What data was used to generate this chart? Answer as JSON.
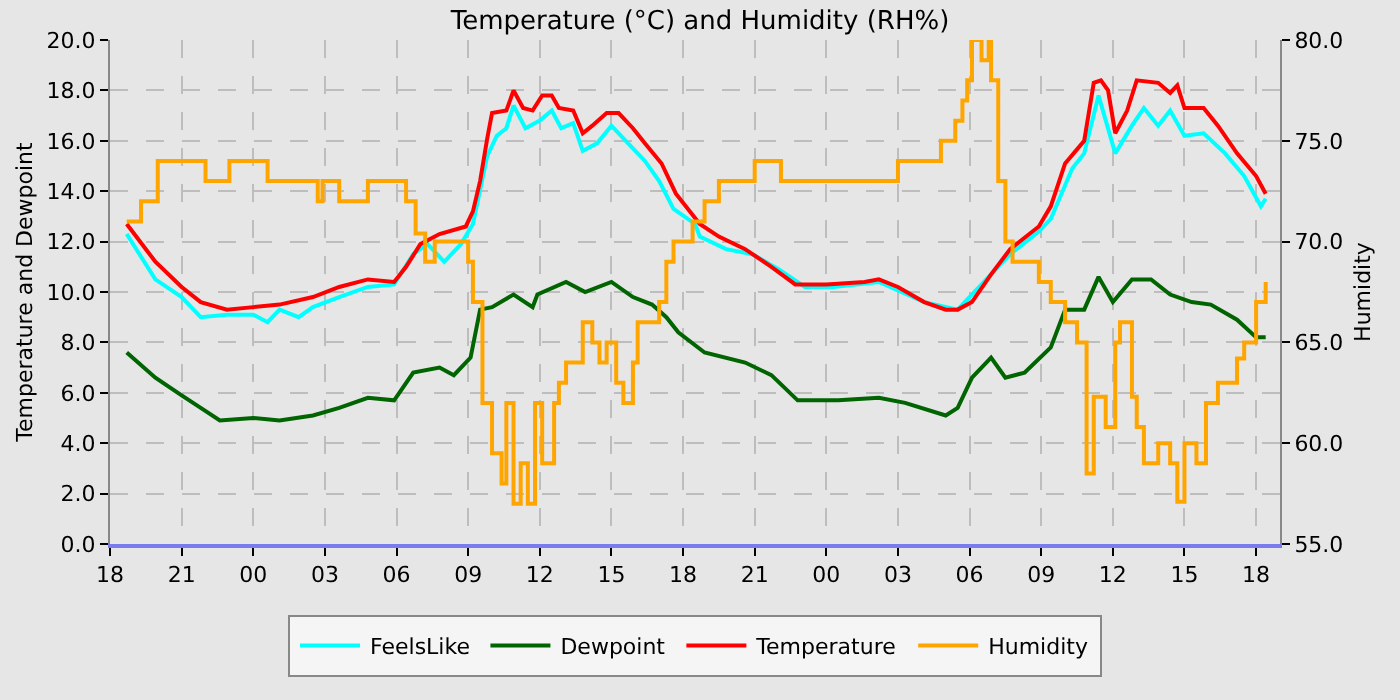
{
  "chart_data": {
    "type": "line",
    "title": "Temperature (°C) and Humidity (RH%)",
    "ylabel": "Temperature and Dewpoint",
    "y2label": "Humidity",
    "xlim": [
      18,
      67
    ],
    "xticks": [
      {
        "value": 18,
        "label": "18"
      },
      {
        "value": 21,
        "label": "21"
      },
      {
        "value": 24,
        "label": "00"
      },
      {
        "value": 27,
        "label": "03"
      },
      {
        "value": 30,
        "label": "06"
      },
      {
        "value": 33,
        "label": "09"
      },
      {
        "value": 36,
        "label": "12"
      },
      {
        "value": 39,
        "label": "15"
      },
      {
        "value": 42,
        "label": "18"
      },
      {
        "value": 45,
        "label": "21"
      },
      {
        "value": 48,
        "label": "00"
      },
      {
        "value": 51,
        "label": "03"
      },
      {
        "value": 54,
        "label": "06"
      },
      {
        "value": 57,
        "label": "09"
      },
      {
        "value": 60,
        "label": "12"
      },
      {
        "value": 63,
        "label": "15"
      },
      {
        "value": 66,
        "label": "18"
      }
    ],
    "ylim": [
      0,
      20
    ],
    "yticks": [
      {
        "value": 0,
        "label": "0.0"
      },
      {
        "value": 2,
        "label": "2.0"
      },
      {
        "value": 4,
        "label": "4.0"
      },
      {
        "value": 6,
        "label": "6.0"
      },
      {
        "value": 8,
        "label": "8.0"
      },
      {
        "value": 10,
        "label": "10.0"
      },
      {
        "value": 12,
        "label": "12.0"
      },
      {
        "value": 14,
        "label": "14.0"
      },
      {
        "value": 16,
        "label": "16.0"
      },
      {
        "value": 18,
        "label": "18.0"
      },
      {
        "value": 20,
        "label": "20.0"
      }
    ],
    "y2lim": [
      55,
      80
    ],
    "y2ticks": [
      {
        "value": 55,
        "label": "55.0"
      },
      {
        "value": 60,
        "label": "60.0"
      },
      {
        "value": 65,
        "label": "65.0"
      },
      {
        "value": 70,
        "label": "70.0"
      },
      {
        "value": 75,
        "label": "75.0"
      },
      {
        "value": 80,
        "label": "80.0"
      }
    ],
    "grid": true,
    "legend": "bottom",
    "marker": "none",
    "line_style": "solid",
    "series": [
      {
        "name": "FeelsLike",
        "color": "#00ffff",
        "x": [
          18.7,
          19.9,
          21.0,
          21.8,
          22.9,
          24.0,
          24.6,
          25.1,
          25.9,
          26.5,
          27.6,
          28.8,
          29.9,
          30.7,
          31.3,
          32.0,
          32.7,
          33.2,
          33.8,
          34.2,
          34.6,
          34.9,
          35.4,
          36.0,
          36.5,
          36.9,
          37.4,
          37.8,
          38.4,
          39.0,
          39.7,
          40.4,
          41.0,
          41.6,
          42.5,
          42.7,
          43.8,
          44.9,
          46.0,
          47.1,
          48.3,
          50.2,
          52.1,
          53.5,
          54.9,
          55.7,
          56.9,
          57.4,
          58.3,
          58.8,
          59.4,
          60.1,
          60.8,
          61.3,
          61.9,
          62.4,
          63.0,
          63.8,
          64.7,
          65.5,
          66.2,
          66.4
        ],
        "values": [
          12.3,
          10.5,
          9.8,
          9.0,
          9.1,
          9.1,
          8.8,
          9.3,
          9.0,
          9.4,
          9.8,
          10.2,
          10.3,
          11.5,
          11.9,
          11.2,
          11.9,
          12.7,
          15.4,
          16.2,
          16.5,
          17.4,
          16.5,
          16.8,
          17.2,
          16.5,
          16.7,
          15.6,
          15.9,
          16.6,
          15.9,
          15.2,
          14.4,
          13.3,
          12.7,
          12.2,
          11.7,
          11.5,
          10.9,
          10.2,
          10.2,
          10.4,
          9.6,
          9.3,
          10.7,
          11.5,
          12.4,
          12.9,
          14.9,
          15.5,
          17.8,
          15.5,
          16.6,
          17.3,
          16.6,
          17.2,
          16.2,
          16.3,
          15.5,
          14.6,
          13.4,
          13.7
        ]
      },
      {
        "name": "Dewpoint",
        "color": "#006400",
        "x": [
          18.7,
          19.9,
          21.0,
          21.8,
          22.6,
          24.0,
          25.1,
          26.5,
          27.6,
          28.8,
          29.9,
          30.7,
          31.8,
          32.4,
          33.1,
          33.5,
          34.0,
          34.9,
          35.7,
          35.9,
          37.1,
          37.9,
          39.0,
          39.9,
          40.7,
          41.3,
          41.8,
          42.9,
          44.6,
          45.7,
          46.8,
          48.5,
          50.2,
          51.3,
          53.0,
          53.5,
          54.1,
          54.9,
          55.5,
          56.3,
          57.4,
          58.0,
          58.8,
          59.4,
          60.0,
          60.8,
          61.6,
          62.4,
          63.3,
          64.1,
          65.2,
          66.0,
          66.4
        ],
        "values": [
          7.6,
          6.6,
          5.9,
          5.4,
          4.9,
          5.0,
          4.9,
          5.1,
          5.4,
          5.8,
          5.7,
          6.8,
          7.0,
          6.7,
          7.4,
          9.3,
          9.4,
          9.9,
          9.4,
          9.9,
          10.4,
          10.0,
          10.4,
          9.8,
          9.5,
          9.0,
          8.4,
          7.6,
          7.2,
          6.7,
          5.7,
          5.7,
          5.8,
          5.6,
          5.1,
          5.4,
          6.6,
          7.4,
          6.6,
          6.8,
          7.8,
          9.3,
          9.3,
          10.6,
          9.6,
          10.5,
          10.5,
          9.9,
          9.6,
          9.5,
          8.9,
          8.2,
          8.2
        ]
      },
      {
        "name": "Temperature",
        "color": "#ff0000",
        "x": [
          18.7,
          19.9,
          21.0,
          21.8,
          22.9,
          24.0,
          25.1,
          26.5,
          27.6,
          28.8,
          29.9,
          30.4,
          31.0,
          31.8,
          32.9,
          33.2,
          33.5,
          33.8,
          34.0,
          34.6,
          34.9,
          35.3,
          35.7,
          36.1,
          36.5,
          36.8,
          37.4,
          37.8,
          38.2,
          38.8,
          39.3,
          39.9,
          40.4,
          41.1,
          41.7,
          42.7,
          43.5,
          44.6,
          45.7,
          46.7,
          48.0,
          49.6,
          50.2,
          51.0,
          52.1,
          53.0,
          53.5,
          54.1,
          54.9,
          55.7,
          56.9,
          57.4,
          58.0,
          58.8,
          59.2,
          59.5,
          59.8,
          60.1,
          60.6,
          61.0,
          61.9,
          62.4,
          62.7,
          63.0,
          63.8,
          64.4,
          65.2,
          66.0,
          66.4
        ],
        "values": [
          12.7,
          11.2,
          10.2,
          9.6,
          9.3,
          9.4,
          9.5,
          9.8,
          10.2,
          10.5,
          10.4,
          11.0,
          11.9,
          12.3,
          12.6,
          13.2,
          14.4,
          16.1,
          17.1,
          17.2,
          18.0,
          17.3,
          17.2,
          17.8,
          17.8,
          17.3,
          17.2,
          16.3,
          16.6,
          17.1,
          17.1,
          16.5,
          15.9,
          15.1,
          13.9,
          12.7,
          12.2,
          11.7,
          11.0,
          10.3,
          10.3,
          10.4,
          10.5,
          10.2,
          9.6,
          9.3,
          9.3,
          9.6,
          10.7,
          11.7,
          12.6,
          13.4,
          15.1,
          16.0,
          18.3,
          18.4,
          18.0,
          16.3,
          17.2,
          18.4,
          18.3,
          17.9,
          18.2,
          17.3,
          17.3,
          16.6,
          15.5,
          14.6,
          13.9
        ]
      },
      {
        "name": "Humidity",
        "color": "#ffa500",
        "type": "step",
        "axis": "y2",
        "x": [
          18.7,
          19.3,
          20.0,
          22.0,
          23.0,
          24.6,
          26.7,
          26.9,
          27.6,
          28.8,
          30.4,
          30.8,
          31.2,
          31.6,
          33.0,
          33.2,
          33.6,
          34.0,
          34.4,
          34.6,
          34.9,
          35.2,
          35.5,
          35.8,
          36.1,
          36.6,
          36.8,
          37.1,
          37.8,
          38.2,
          38.5,
          38.8,
          39.2,
          39.5,
          39.9,
          40.1,
          41.0,
          41.3,
          41.6,
          41.8,
          42.4,
          42.9,
          43.5,
          45.0,
          46.1,
          51.0,
          52.8,
          53.4,
          53.7,
          53.9,
          54.1,
          54.5,
          54.8,
          54.9,
          55.2,
          55.5,
          55.8,
          56.9,
          57.4,
          58.0,
          58.5,
          58.9,
          59.2,
          59.7,
          60.1,
          60.3,
          60.8,
          61.0,
          61.3,
          61.9,
          62.4,
          62.7,
          63.0,
          63.5,
          63.9,
          64.4,
          65.2,
          65.5,
          66.0,
          66.4
        ],
        "values": [
          71,
          72,
          74,
          73,
          74,
          73,
          72,
          73,
          72,
          73,
          72,
          70.4,
          69,
          70,
          69,
          67,
          62,
          59.5,
          58,
          62,
          57,
          59,
          57,
          62,
          59,
          62,
          63,
          64,
          66,
          65,
          64,
          65,
          63,
          62,
          64,
          66,
          67,
          69,
          70,
          70,
          71,
          72,
          73,
          74,
          73,
          74,
          75,
          76,
          77,
          78,
          80,
          79,
          80,
          78,
          73,
          70,
          69,
          68,
          67,
          66,
          65,
          58.5,
          62.3,
          60.8,
          65,
          66,
          62.3,
          60.8,
          59,
          60,
          59,
          57.1,
          60,
          59,
          62,
          63,
          64.2,
          65,
          67,
          68
        ]
      }
    ]
  }
}
